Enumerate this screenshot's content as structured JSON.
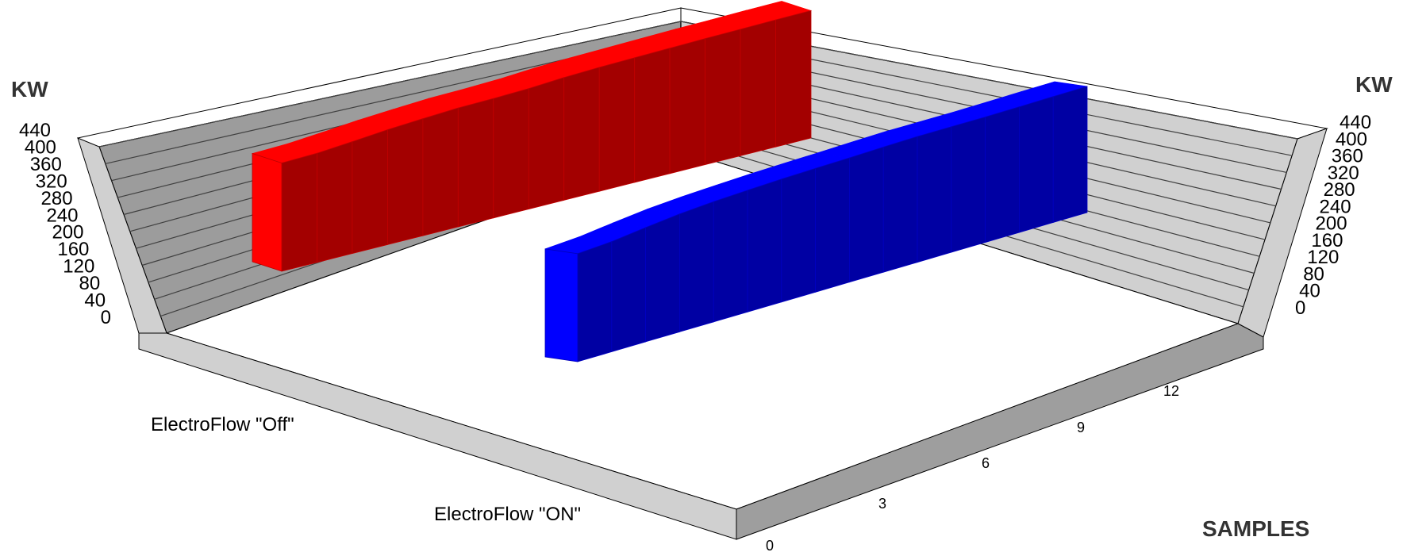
{
  "chart_data": {
    "type": "bar",
    "subtype": "3d-ribbon",
    "title": "",
    "ylabel_left": "KW",
    "ylabel_right": "KW",
    "xlabel": "SAMPLES",
    "ylim": [
      0,
      440
    ],
    "y_ticks": [
      "0",
      "40",
      "80",
      "120",
      "160",
      "200",
      "240",
      "280",
      "320",
      "360",
      "400",
      "440"
    ],
    "x_ticks": [
      "0",
      "3",
      "6",
      "9",
      "12"
    ],
    "categories": [
      "ElectroFlow \"ON\"",
      "ElectroFlow \"Off\""
    ],
    "x": [
      0,
      1,
      2,
      3,
      4,
      5,
      6,
      7,
      8,
      9,
      10,
      11,
      12,
      13,
      14
    ],
    "series": [
      {
        "name": "ElectroFlow \"Off\"",
        "color": "#cc0000",
        "values": [
          300,
          305,
          315,
          322,
          327,
          332,
          330,
          338,
          342,
          345,
          346,
          349,
          350,
          351,
          353
        ]
      },
      {
        "name": "ElectroFlow \"ON\"",
        "color": "#0000cc",
        "values": [
          262,
          272,
          282,
          290,
          293,
          297,
          299,
          301,
          302,
          305,
          305,
          304,
          304,
          305,
          306
        ]
      }
    ],
    "grid": true,
    "colors": {
      "wall_back": "#9c9c9c",
      "wall_right": "#d0d0d0",
      "floor_rim": "#d0d0d0",
      "floor_rim_dark": "#9e9e9e",
      "grid_line": "#404040"
    }
  }
}
